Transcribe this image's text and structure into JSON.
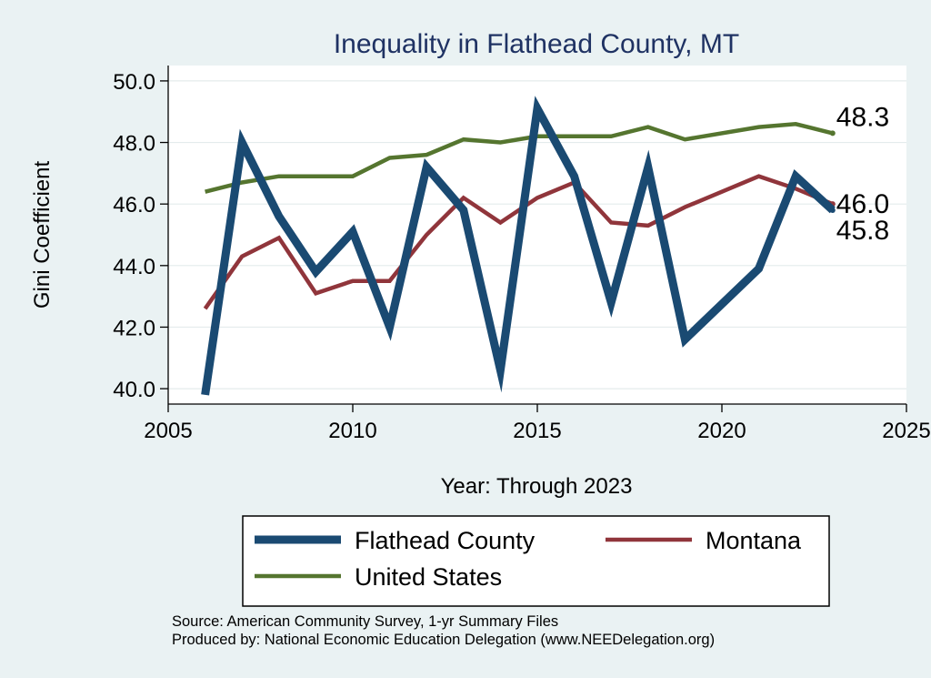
{
  "chart_data": {
    "type": "line",
    "title": "Inequality in Flathead County, MT",
    "xlabel": "Year: Through 2023",
    "ylabel": "Gini Coefficient",
    "xlim": [
      2005,
      2025
    ],
    "ylim": [
      39.5,
      50.5
    ],
    "x_ticks": [
      2005,
      2010,
      2015,
      2020,
      2025
    ],
    "y_ticks": [
      40,
      42,
      44,
      46,
      48,
      50
    ],
    "y_tick_labels": [
      "40.0",
      "42.0",
      "44.0",
      "46.0",
      "48.0",
      "50.0"
    ],
    "grid": true,
    "legend_position": "bottom",
    "series": [
      {
        "name": "Flathead County",
        "color": "#1a4a72",
        "stroke": "thick",
        "x": [
          2006,
          2007,
          2008,
          2009,
          2010,
          2011,
          2012,
          2013,
          2014,
          2015,
          2016,
          2017,
          2018,
          2019,
          2021,
          2022,
          2023
        ],
        "values": [
          39.8,
          48.0,
          45.6,
          43.8,
          45.1,
          42.0,
          47.2,
          45.8,
          40.6,
          49.1,
          46.9,
          42.8,
          47.2,
          41.6,
          43.9,
          46.9,
          45.8
        ],
        "end_label": "45.8"
      },
      {
        "name": "Montana",
        "color": "#90353b",
        "stroke": "medium",
        "x": [
          2006,
          2007,
          2008,
          2009,
          2010,
          2011,
          2012,
          2013,
          2014,
          2015,
          2016,
          2017,
          2018,
          2019,
          2021,
          2022,
          2023
        ],
        "values": [
          42.6,
          44.3,
          44.9,
          43.1,
          43.5,
          43.5,
          45.0,
          46.2,
          45.4,
          46.2,
          46.7,
          45.4,
          45.3,
          45.9,
          46.9,
          46.5,
          46.0
        ],
        "end_label": "46.0"
      },
      {
        "name": "United States",
        "color": "#55752f",
        "stroke": "medium",
        "x": [
          2006,
          2007,
          2008,
          2009,
          2010,
          2011,
          2012,
          2013,
          2014,
          2015,
          2016,
          2017,
          2018,
          2019,
          2021,
          2022,
          2023
        ],
        "values": [
          46.4,
          46.7,
          46.9,
          46.9,
          46.9,
          47.5,
          47.6,
          48.1,
          48.0,
          48.2,
          48.2,
          48.2,
          48.5,
          48.1,
          48.5,
          48.6,
          48.3
        ],
        "end_label": "48.3"
      }
    ],
    "legend": [
      {
        "label": "Flathead County",
        "series": 0
      },
      {
        "label": "Montana",
        "series": 1
      },
      {
        "label": "United States",
        "series": 2
      }
    ],
    "notes": [
      "Source: American Community Survey, 1-yr Summary Files",
      "Produced by: National Economic Education Delegation (www.NEEDelegation.org)"
    ]
  }
}
